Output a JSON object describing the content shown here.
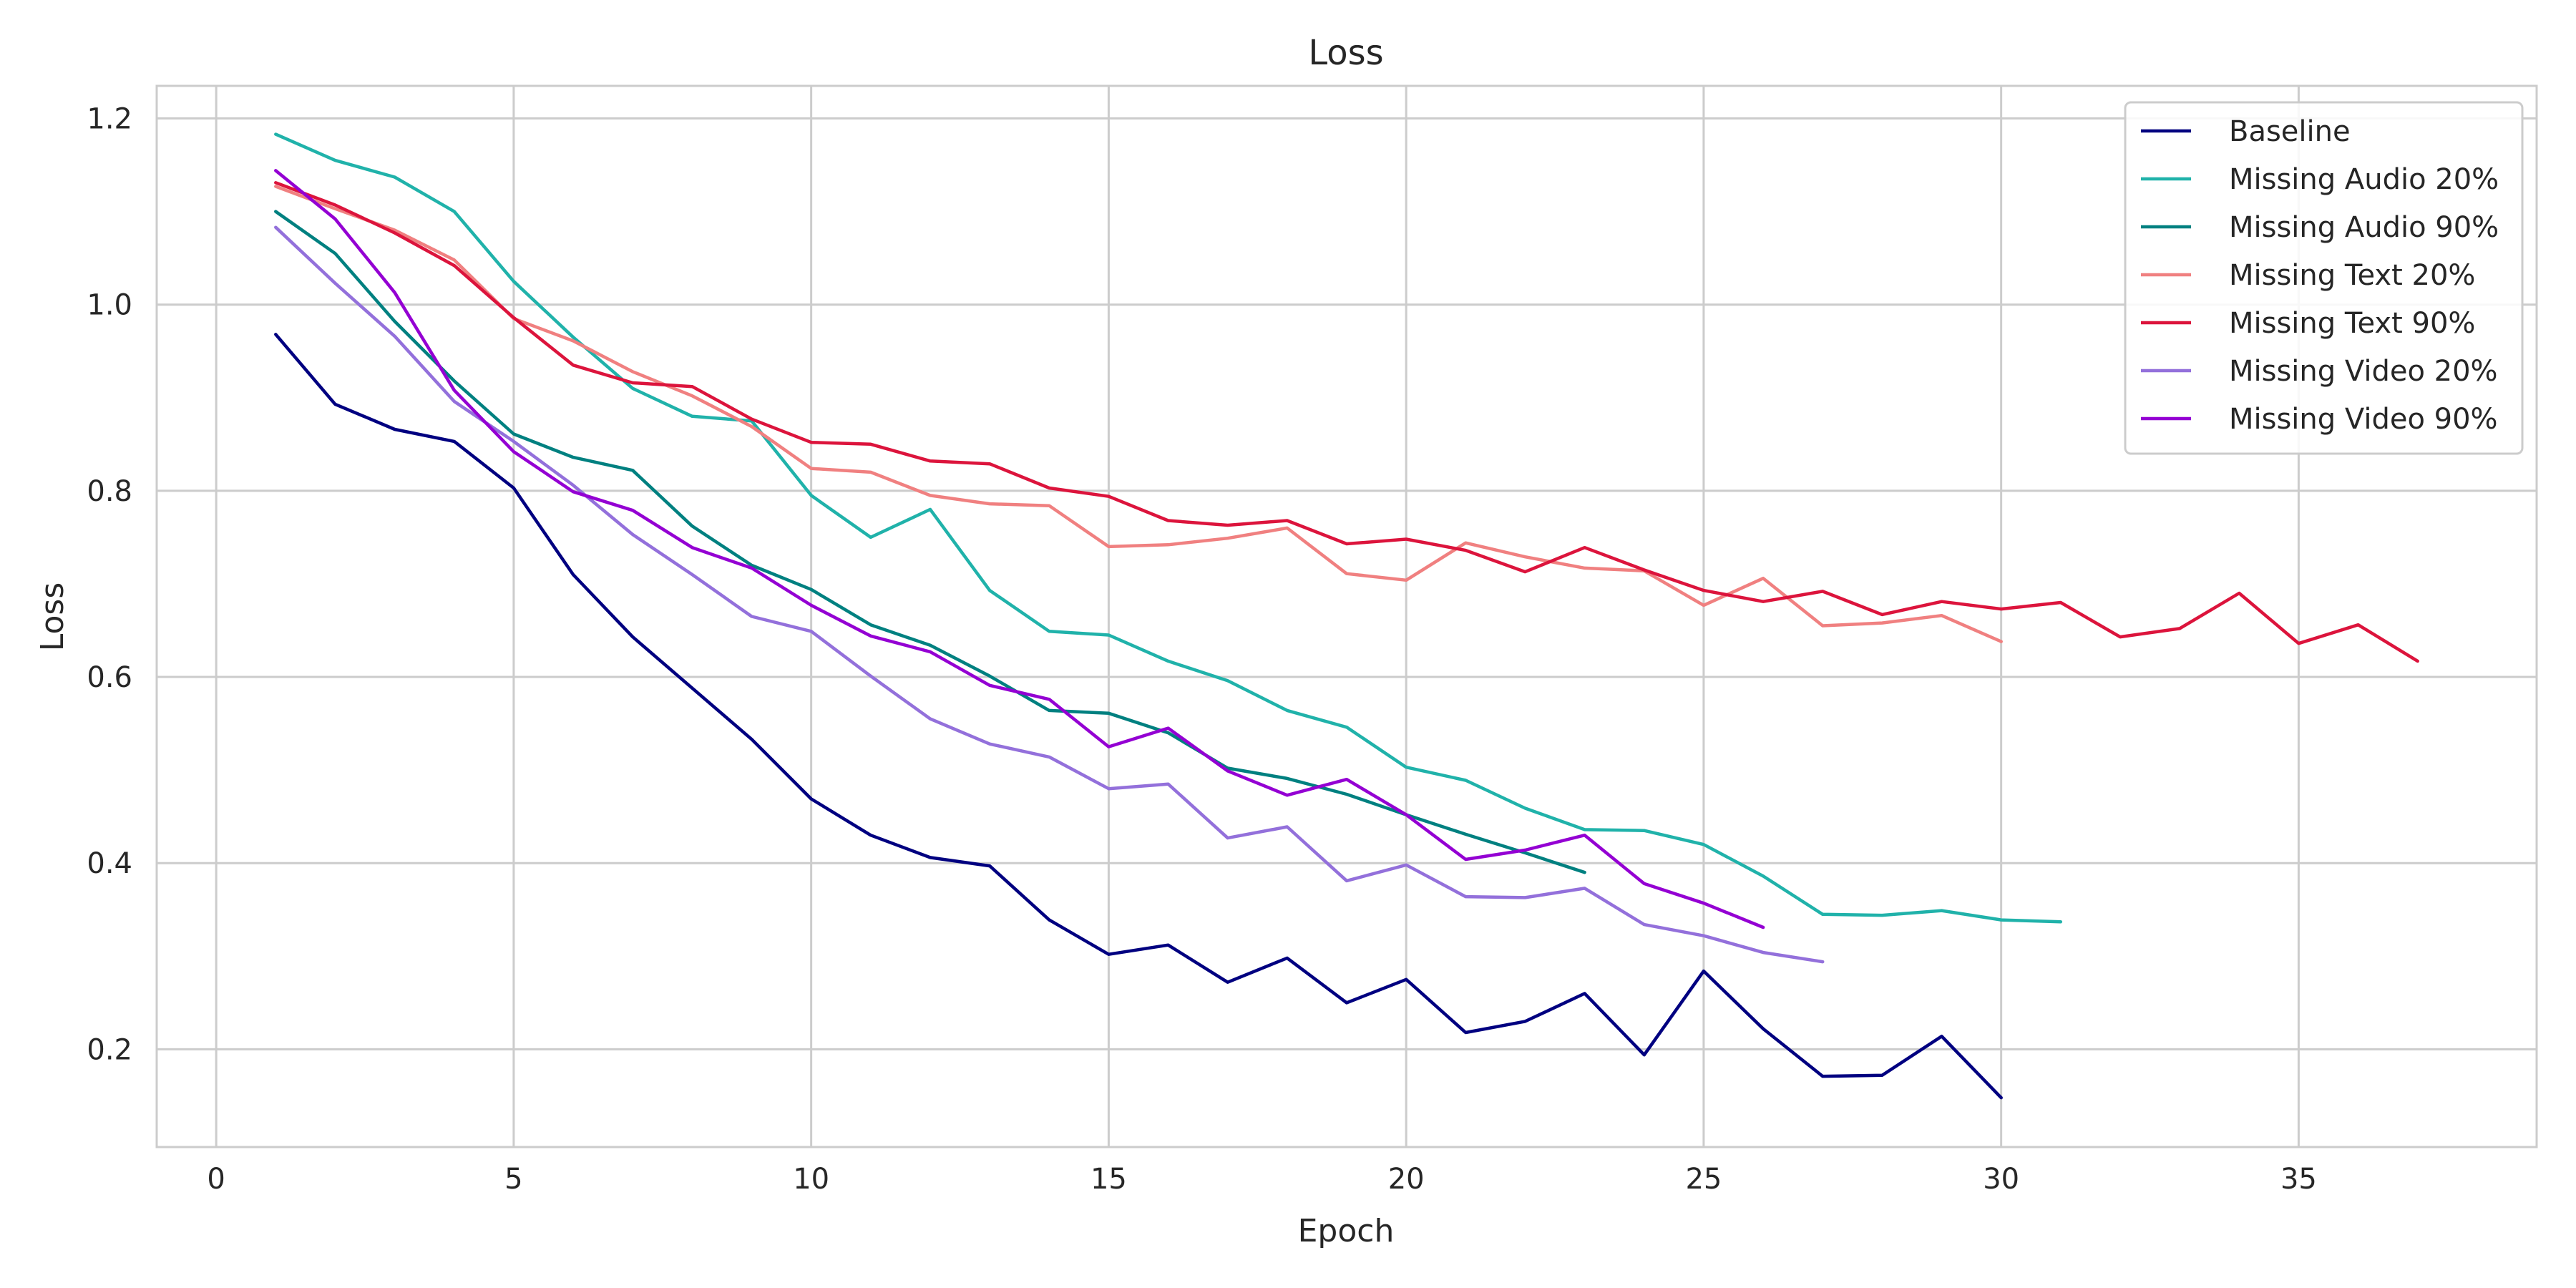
{
  "chart_data": {
    "type": "line",
    "title": "Loss",
    "xlabel": "Epoch",
    "ylabel": "Loss",
    "xlim": [
      -1,
      39
    ],
    "ylim": [
      0.095,
      1.235
    ],
    "xticks": [
      0,
      5,
      10,
      15,
      20,
      25,
      30,
      35
    ],
    "yticks": [
      0.2,
      0.4,
      0.6,
      0.8,
      1.0,
      1.2
    ],
    "xtick_labels": [
      "0",
      "5",
      "10",
      "15",
      "20",
      "25",
      "30",
      "35"
    ],
    "ytick_labels": [
      "0.2",
      "0.4",
      "0.6",
      "0.8",
      "1.0",
      "1.2"
    ],
    "grid": true,
    "legend_position": "top-right",
    "series": [
      {
        "name": "Baseline",
        "color": "#000080",
        "x": [
          1,
          2,
          3,
          4,
          5,
          6,
          7,
          8,
          9,
          10,
          11,
          12,
          13,
          14,
          15,
          16,
          17,
          18,
          19,
          20,
          21,
          22,
          23,
          24,
          25,
          26,
          27,
          28,
          29,
          30
        ],
        "y": [
          0.968,
          0.893,
          0.866,
          0.853,
          0.803,
          0.71,
          0.643,
          0.588,
          0.533,
          0.469,
          0.43,
          0.406,
          0.397,
          0.339,
          0.302,
          0.312,
          0.272,
          0.298,
          0.25,
          0.275,
          0.218,
          0.23,
          0.26,
          0.194,
          0.284,
          0.222,
          0.171,
          0.172,
          0.214,
          0.148
        ]
      },
      {
        "name": "Missing Audio 20%",
        "color": "#20B2AA",
        "x": [
          1,
          2,
          3,
          4,
          5,
          6,
          7,
          8,
          9,
          10,
          11,
          12,
          13,
          14,
          15,
          16,
          17,
          18,
          19,
          20,
          21,
          22,
          23,
          24,
          25,
          26,
          27,
          28,
          29,
          30,
          31
        ],
        "y": [
          1.183,
          1.155,
          1.137,
          1.1,
          1.025,
          0.965,
          0.91,
          0.88,
          0.875,
          0.795,
          0.75,
          0.78,
          0.693,
          0.649,
          0.645,
          0.617,
          0.596,
          0.564,
          0.546,
          0.503,
          0.489,
          0.459,
          0.436,
          0.435,
          0.42,
          0.386,
          0.345,
          0.344,
          0.349,
          0.339,
          0.337
        ]
      },
      {
        "name": "Missing Audio 90%",
        "color": "#008080",
        "x": [
          1,
          2,
          3,
          4,
          5,
          6,
          7,
          8,
          9,
          10,
          11,
          12,
          13,
          14,
          15,
          16,
          17,
          18,
          19,
          20,
          21,
          22,
          23
        ],
        "y": [
          1.1,
          1.055,
          0.982,
          0.918,
          0.861,
          0.836,
          0.822,
          0.762,
          0.72,
          0.694,
          0.656,
          0.634,
          0.601,
          0.564,
          0.561,
          0.54,
          0.502,
          0.491,
          0.474,
          0.452,
          0.431,
          0.411,
          0.39
        ]
      },
      {
        "name": "Missing Text 20%",
        "color": "#F08080",
        "x": [
          1,
          2,
          3,
          4,
          5,
          6,
          7,
          8,
          9,
          10,
          11,
          12,
          13,
          14,
          15,
          16,
          17,
          18,
          19,
          20,
          21,
          22,
          23,
          24,
          25,
          26,
          27,
          28,
          29,
          30
        ],
        "y": [
          1.127,
          1.103,
          1.08,
          1.048,
          0.985,
          0.961,
          0.928,
          0.902,
          0.869,
          0.824,
          0.82,
          0.795,
          0.786,
          0.784,
          0.74,
          0.742,
          0.749,
          0.76,
          0.711,
          0.704,
          0.744,
          0.729,
          0.717,
          0.714,
          0.677,
          0.706,
          0.655,
          0.658,
          0.666,
          0.638
        ]
      },
      {
        "name": "Missing Text 90%",
        "color": "#DC143C",
        "x": [
          1,
          2,
          3,
          4,
          5,
          6,
          7,
          8,
          9,
          10,
          11,
          12,
          13,
          14,
          15,
          16,
          17,
          18,
          19,
          20,
          21,
          22,
          23,
          24,
          25,
          26,
          27,
          28,
          29,
          30,
          31,
          32,
          33,
          34,
          35,
          36,
          37
        ],
        "y": [
          1.131,
          1.107,
          1.077,
          1.042,
          0.986,
          0.935,
          0.916,
          0.912,
          0.877,
          0.852,
          0.85,
          0.832,
          0.829,
          0.803,
          0.794,
          0.768,
          0.763,
          0.768,
          0.743,
          0.748,
          0.736,
          0.713,
          0.739,
          0.715,
          0.693,
          0.681,
          0.692,
          0.667,
          0.681,
          0.673,
          0.68,
          0.643,
          0.652,
          0.69,
          0.636,
          0.656,
          0.617
        ]
      },
      {
        "name": "Missing Video 20%",
        "color": "#9370DB",
        "x": [
          1,
          2,
          3,
          4,
          5,
          6,
          7,
          8,
          9,
          10,
          11,
          12,
          13,
          14,
          15,
          16,
          17,
          18,
          19,
          20,
          21,
          22,
          23,
          24,
          25,
          26,
          27
        ],
        "y": [
          1.083,
          1.023,
          0.966,
          0.896,
          0.853,
          0.806,
          0.753,
          0.71,
          0.665,
          0.649,
          0.601,
          0.555,
          0.528,
          0.514,
          0.48,
          0.485,
          0.427,
          0.439,
          0.381,
          0.398,
          0.364,
          0.363,
          0.373,
          0.334,
          0.322,
          0.304,
          0.294
        ]
      },
      {
        "name": "Missing Video 90%",
        "color": "#9400D3",
        "x": [
          1,
          2,
          3,
          4,
          5,
          6,
          7,
          8,
          9,
          10,
          11,
          12,
          13,
          14,
          15,
          16,
          17,
          18,
          19,
          20,
          21,
          22,
          23,
          24,
          25,
          26
        ],
        "y": [
          1.144,
          1.092,
          1.013,
          0.908,
          0.842,
          0.799,
          0.779,
          0.739,
          0.717,
          0.677,
          0.644,
          0.627,
          0.591,
          0.576,
          0.525,
          0.545,
          0.499,
          0.473,
          0.49,
          0.452,
          0.404,
          0.414,
          0.43,
          0.378,
          0.357,
          0.331
        ]
      }
    ]
  }
}
